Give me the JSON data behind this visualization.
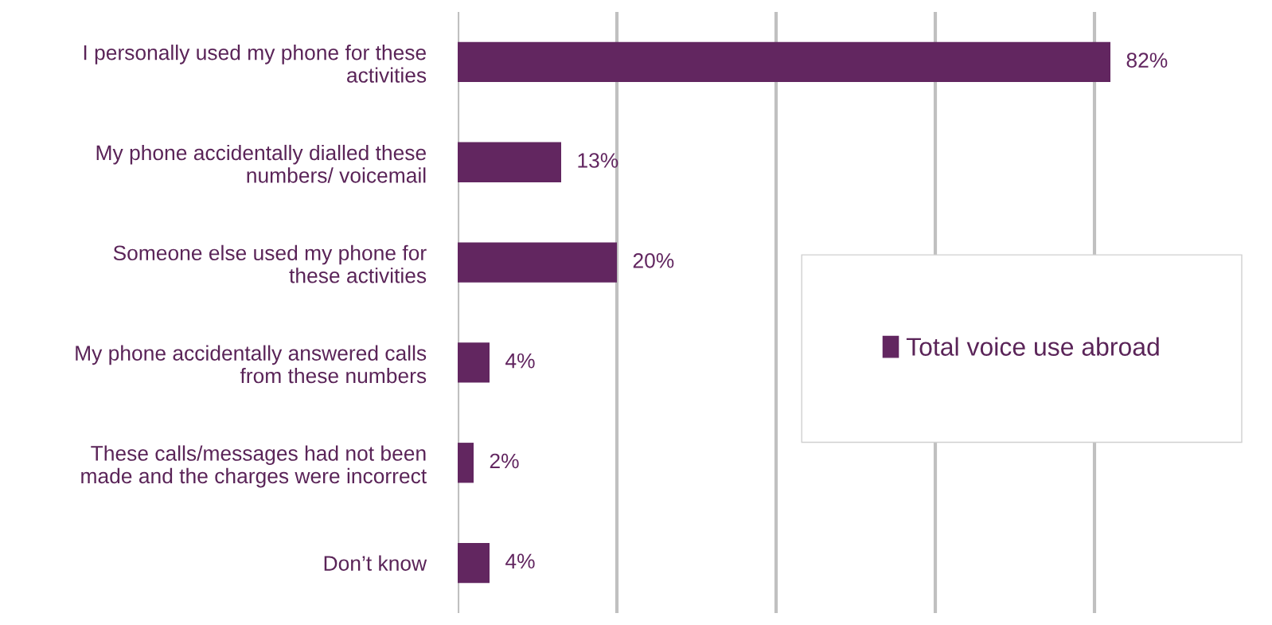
{
  "chart_data": {
    "type": "bar",
    "orientation": "horizontal",
    "categories": [
      "I personally used my phone for these\nactivities",
      "My phone accidentally dialled these\nnumbers/ voicemail",
      "Someone else used my phone for\nthese activities",
      "My phone accidentally answered calls\nfrom these numbers",
      "These calls/messages had not been\nmade and the charges were incorrect",
      "Don’t know"
    ],
    "series": [
      {
        "name": "Total voice use abroad",
        "color": "#622660",
        "values": [
          82,
          13,
          20,
          4,
          2,
          4
        ],
        "value_labels": [
          "82%",
          "13%",
          "20%",
          "4%",
          "2%",
          "4%"
        ]
      }
    ],
    "xticks": [
      {
        "value": 0,
        "label": null
      },
      {
        "value": 20,
        "label": null
      },
      {
        "value": 40,
        "label": null
      },
      {
        "value": 60,
        "label": null
      },
      {
        "value": 80,
        "label": null
      }
    ],
    "tick_labels": "y",
    "grid": "x",
    "legend": "right"
  }
}
